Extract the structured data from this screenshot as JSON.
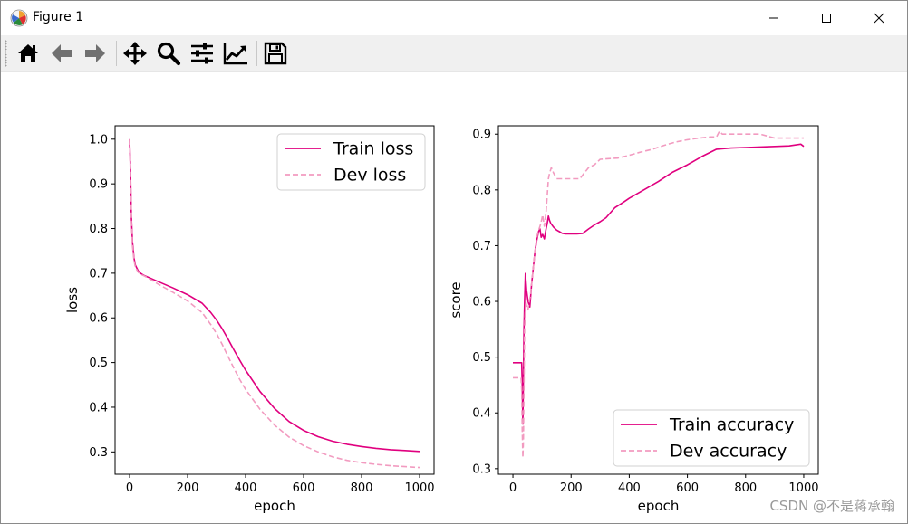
{
  "window": {
    "title": "Figure 1",
    "controls": [
      "minimize",
      "maximize",
      "close"
    ]
  },
  "toolbar": {
    "tools": [
      {
        "name": "home-icon"
      },
      {
        "name": "back-arrow-icon"
      },
      {
        "name": "forward-arrow-icon"
      },
      {
        "name": "pan-move-icon"
      },
      {
        "name": "zoom-magnifier-icon"
      },
      {
        "name": "subplots-config-icon"
      },
      {
        "name": "edit-axis-curve-icon"
      },
      {
        "name": "save-floppy-icon"
      }
    ]
  },
  "watermark": "CSDN @不是蒋承翰",
  "chart_data": [
    {
      "type": "line",
      "xlabel": "epoch",
      "ylabel": "loss",
      "xlim": [
        -50,
        1050
      ],
      "ylim": [
        0.25,
        1.03
      ],
      "xticks": [
        0,
        200,
        400,
        600,
        800,
        1000
      ],
      "yticks": [
        0.3,
        0.4,
        0.5,
        0.6,
        0.7,
        0.8,
        0.9,
        1.0
      ],
      "xtick_labels": [
        "0",
        "200",
        "400",
        "600",
        "800",
        "1000"
      ],
      "ytick_labels": [
        "0.3",
        "0.4",
        "0.5",
        "0.6",
        "0.7",
        "0.8",
        "0.9",
        "1.0"
      ],
      "legend_position": "top-right",
      "grid": false,
      "series": [
        {
          "name": "Train loss",
          "color": "#e0007f",
          "style": "solid",
          "x": [
            0,
            3,
            6,
            10,
            15,
            20,
            30,
            40,
            50,
            75,
            100,
            150,
            200,
            250,
            280,
            300,
            320,
            340,
            360,
            380,
            400,
            450,
            500,
            550,
            600,
            650,
            700,
            750,
            800,
            850,
            900,
            950,
            1000
          ],
          "y": [
            1.0,
            0.93,
            0.83,
            0.77,
            0.735,
            0.718,
            0.705,
            0.699,
            0.695,
            0.688,
            0.681,
            0.667,
            0.652,
            0.633,
            0.612,
            0.595,
            0.575,
            0.552,
            0.528,
            0.505,
            0.483,
            0.435,
            0.397,
            0.368,
            0.348,
            0.334,
            0.324,
            0.317,
            0.312,
            0.308,
            0.305,
            0.303,
            0.301
          ]
        },
        {
          "name": "Dev loss",
          "color": "#f29bc0",
          "style": "dashed",
          "x": [
            0,
            3,
            6,
            10,
            15,
            20,
            30,
            40,
            50,
            75,
            100,
            150,
            200,
            250,
            280,
            300,
            320,
            340,
            360,
            380,
            400,
            450,
            500,
            550,
            600,
            650,
            700,
            750,
            800,
            850,
            900,
            950,
            1000
          ],
          "y": [
            1.0,
            0.92,
            0.82,
            0.76,
            0.73,
            0.713,
            0.702,
            0.697,
            0.694,
            0.685,
            0.675,
            0.657,
            0.638,
            0.612,
            0.585,
            0.565,
            0.54,
            0.513,
            0.487,
            0.462,
            0.44,
            0.395,
            0.36,
            0.333,
            0.314,
            0.3,
            0.289,
            0.281,
            0.276,
            0.272,
            0.269,
            0.267,
            0.265
          ]
        }
      ]
    },
    {
      "type": "line",
      "xlabel": "epoch",
      "ylabel": "score",
      "xlim": [
        -50,
        1050
      ],
      "ylim": [
        0.29,
        0.915
      ],
      "xticks": [
        0,
        200,
        400,
        600,
        800,
        1000
      ],
      "yticks": [
        0.3,
        0.4,
        0.5,
        0.6,
        0.7,
        0.8,
        0.9
      ],
      "xtick_labels": [
        "0",
        "200",
        "400",
        "600",
        "800",
        "1000"
      ],
      "ytick_labels": [
        "0.3",
        "0.4",
        "0.5",
        "0.6",
        "0.7",
        "0.8",
        "0.9"
      ],
      "legend_position": "bottom-right",
      "grid": false,
      "series": [
        {
          "name": "Train accuracy",
          "color": "#e0007f",
          "style": "solid",
          "x": [
            0,
            30,
            32,
            34,
            36,
            38,
            40,
            43,
            47,
            52,
            58,
            64,
            70,
            76,
            82,
            88,
            93,
            97,
            102,
            108,
            114,
            118,
            122,
            126,
            130,
            140,
            150,
            160,
            170,
            180,
            200,
            220,
            240,
            260,
            280,
            300,
            320,
            350,
            380,
            400,
            450,
            500,
            550,
            600,
            650,
            700,
            750,
            800,
            850,
            900,
            950,
            990,
            1000
          ],
          "y": [
            0.49,
            0.49,
            0.45,
            0.38,
            0.46,
            0.55,
            0.6,
            0.65,
            0.62,
            0.6,
            0.59,
            0.63,
            0.66,
            0.69,
            0.71,
            0.725,
            0.73,
            0.715,
            0.72,
            0.712,
            0.73,
            0.74,
            0.753,
            0.745,
            0.74,
            0.733,
            0.728,
            0.725,
            0.722,
            0.721,
            0.721,
            0.721,
            0.722,
            0.73,
            0.737,
            0.743,
            0.75,
            0.768,
            0.778,
            0.785,
            0.8,
            0.815,
            0.832,
            0.845,
            0.86,
            0.873,
            0.875,
            0.876,
            0.877,
            0.878,
            0.879,
            0.882,
            0.878
          ]
        },
        {
          "name": "Dev accuracy",
          "color": "#f29bc0",
          "style": "dashed",
          "x": [
            0,
            28,
            30,
            32,
            34,
            36,
            38,
            40,
            44,
            48,
            52,
            56,
            60,
            66,
            72,
            78,
            84,
            90,
            96,
            102,
            108,
            114,
            118,
            122,
            126,
            132,
            140,
            150,
            170,
            200,
            230,
            260,
            280,
            300,
            330,
            360,
            400,
            440,
            480,
            520,
            560,
            600,
            640,
            680,
            700,
            710,
            720,
            760,
            800,
            850,
            900,
            950,
            1000
          ],
          "y": [
            0.463,
            0.463,
            0.44,
            0.37,
            0.32,
            0.35,
            0.44,
            0.55,
            0.6,
            0.59,
            0.585,
            0.6,
            0.61,
            0.64,
            0.67,
            0.7,
            0.72,
            0.73,
            0.74,
            0.755,
            0.735,
            0.76,
            0.79,
            0.82,
            0.83,
            0.84,
            0.83,
            0.82,
            0.82,
            0.82,
            0.82,
            0.84,
            0.845,
            0.855,
            0.856,
            0.857,
            0.862,
            0.868,
            0.873,
            0.88,
            0.886,
            0.89,
            0.893,
            0.895,
            0.895,
            0.905,
            0.9,
            0.9,
            0.9,
            0.9,
            0.893,
            0.893,
            0.893
          ]
        }
      ]
    }
  ]
}
